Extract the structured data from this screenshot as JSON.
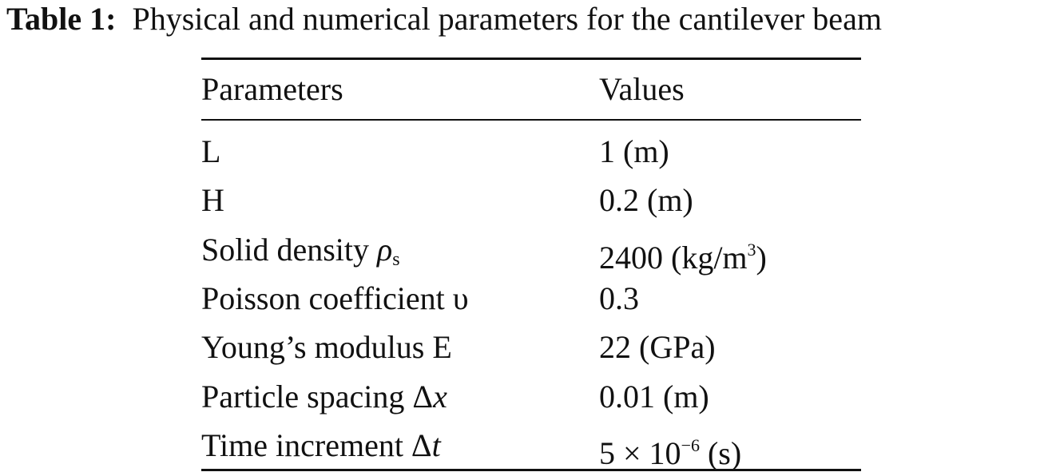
{
  "caption": {
    "label": "Table 1:",
    "text": "Physical and numerical parameters for the cantilever beam"
  },
  "table": {
    "header": [
      "Parameters",
      "Values"
    ],
    "rows": [
      [
        [
          "L"
        ],
        [
          "1 (m)"
        ]
      ],
      [
        [
          "H"
        ],
        [
          "0.2 (m)"
        ]
      ],
      [
        [
          "Solid density ",
          {
            "text": "ρ",
            "italic": true
          },
          {
            "text": "s",
            "pos": "sub"
          }
        ],
        [
          "2400 (kg/m",
          {
            "text": "3",
            "pos": "sup"
          },
          ")"
        ]
      ],
      [
        [
          "Poisson coefficient υ"
        ],
        [
          "0.3"
        ]
      ],
      [
        [
          "Young’s modulus E"
        ],
        [
          "22 (GPa)"
        ]
      ],
      [
        [
          "Particle spacing Δ",
          {
            "text": "x",
            "italic": true
          }
        ],
        [
          "0.01 (m)"
        ]
      ],
      [
        [
          "Time increment Δ",
          {
            "text": "t",
            "italic": true
          }
        ],
        [
          "5 × 10",
          {
            "text": "−6",
            "pos": "sup"
          },
          " (s)"
        ]
      ]
    ]
  }
}
